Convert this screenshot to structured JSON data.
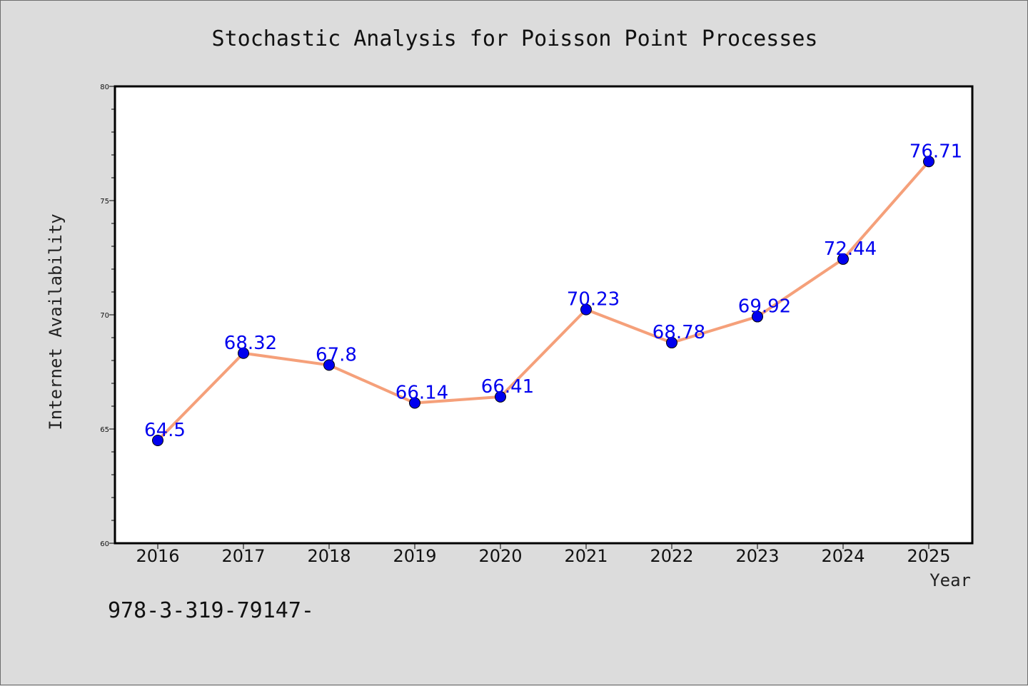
{
  "chart_data": {
    "type": "line",
    "title": "Stochastic Analysis for Poisson Point Processes",
    "xlabel": "Year",
    "ylabel": "Internet Availability",
    "categories": [
      "2016",
      "2017",
      "2018",
      "2019",
      "2020",
      "2021",
      "2022",
      "2023",
      "2024",
      "2025"
    ],
    "series": [
      {
        "values": [
          64.5,
          68.32,
          67.8,
          66.14,
          66.41,
          70.23,
          68.78,
          69.92,
          72.44,
          76.71
        ],
        "labels": [
          "64.5",
          "68.32",
          "67.8",
          "66.14",
          "66.41",
          "70.23",
          "68.78",
          "69.92",
          "72.44",
          "76.71"
        ],
        "line_color": "#f5a07a",
        "marker_color": "#0000ee",
        "label_color": "#0000ee"
      }
    ],
    "ylim": [
      60,
      80
    ],
    "yticks": [
      "60",
      "65",
      "70",
      "75",
      "80"
    ],
    "grid": false,
    "legend": "none"
  },
  "footer_text": "978-3-319-79147-"
}
